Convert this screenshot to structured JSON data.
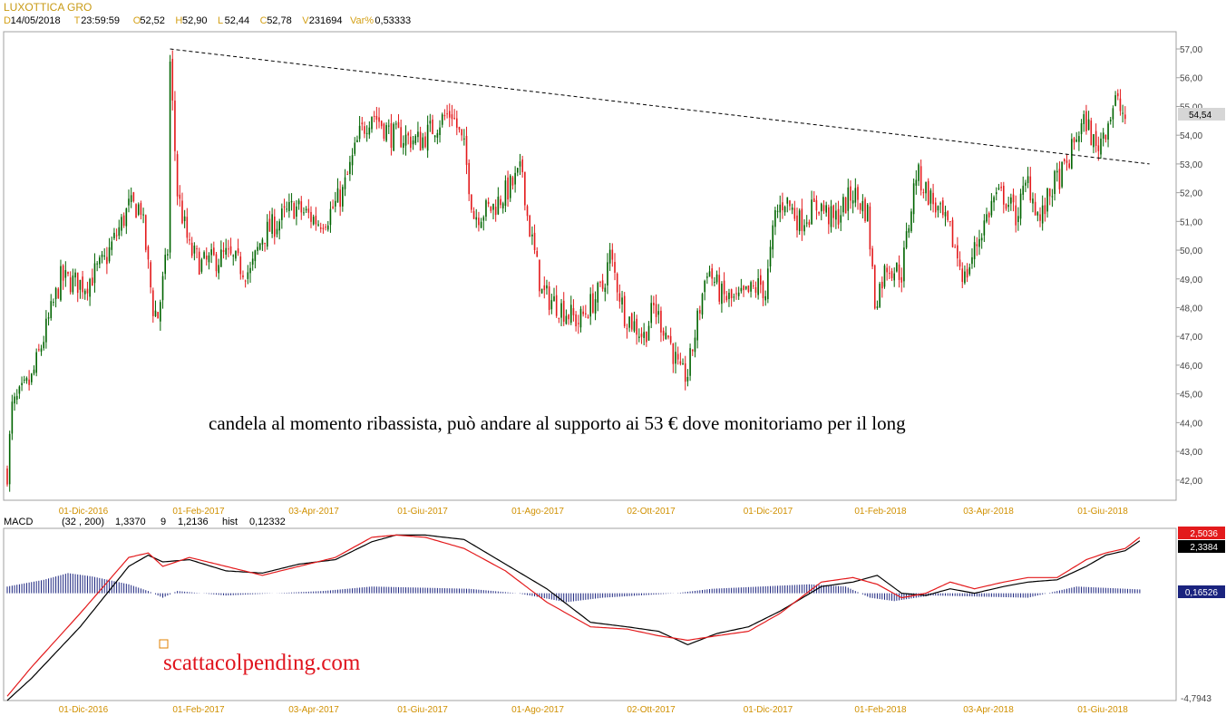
{
  "header": {
    "title": "LUXOTTICA GRO",
    "fields": [
      {
        "key": "D",
        "value": "14/05/2018"
      },
      {
        "key": "T",
        "value": "23:59:59"
      },
      {
        "key": "O",
        "value": "52,52"
      },
      {
        "key": "H",
        "value": "52,90"
      },
      {
        "key": "L",
        "value": "52,44"
      },
      {
        "key": "C",
        "value": "52,78"
      },
      {
        "key": "V",
        "value": "231694"
      },
      {
        "key": "Var%",
        "value": "0,53333"
      }
    ]
  },
  "colors": {
    "up": "#006400",
    "down": "#e31a1c",
    "macd_line": "#000000",
    "signal_line": "#e31a1c",
    "histogram": "#1a237e",
    "trendline": "#000000",
    "tick_x": "#d09000",
    "grid_border": "#a0a0a0"
  },
  "chart_data": [
    {
      "type": "candlestick",
      "ylim": [
        41.3,
        57.6
      ],
      "y_ticks": [
        42,
        43,
        44,
        45,
        46,
        47,
        48,
        49,
        50,
        51,
        52,
        53,
        54,
        55,
        56,
        57
      ],
      "y_tick_labels": [
        "42,00",
        "43,00",
        "44,00",
        "45,00",
        "46,00",
        "47,00",
        "48,00",
        "49,00",
        "50,00",
        "51,00",
        "52,00",
        "53,00",
        "54,00",
        "55,00",
        "56,00",
        "57,00"
      ],
      "x_tick_labels": [
        "01-Dic-2016",
        "01-Feb-2017",
        "03-Apr-2017",
        "01-Giu-2017",
        "01-Ago-2017",
        "02-Ott-2017",
        "01-Dic-2017",
        "01-Feb-2018",
        "03-Apr-2018",
        "01-Giu-2018"
      ],
      "last_value_label": "54,54",
      "last_value": 54.54,
      "price_path": [
        [
          0,
          42.3
        ],
        [
          2,
          44.5
        ],
        [
          10,
          45.5
        ],
        [
          22,
          49.0
        ],
        [
          32,
          48.8
        ],
        [
          40,
          49.6
        ],
        [
          50,
          51.5
        ],
        [
          55,
          51.5
        ],
        [
          60,
          48.0
        ],
        [
          62,
          47.7
        ],
        [
          66,
          50.0
        ],
        [
          67,
          56.5
        ],
        [
          70,
          52.0
        ],
        [
          75,
          50.0
        ],
        [
          80,
          49.5
        ],
        [
          90,
          49.8
        ],
        [
          100,
          49.2
        ],
        [
          105,
          50.5
        ],
        [
          118,
          51.5
        ],
        [
          128,
          51.0
        ],
        [
          132,
          51.2
        ],
        [
          138,
          52.0
        ],
        [
          145,
          54.0
        ],
        [
          150,
          54.8
        ],
        [
          158,
          54.0
        ],
        [
          170,
          53.8
        ],
        [
          178,
          54.5
        ],
        [
          183,
          54.8
        ],
        [
          188,
          53.5
        ],
        [
          192,
          51.2
        ],
        [
          200,
          51.5
        ],
        [
          208,
          52.3
        ],
        [
          212,
          52.8
        ],
        [
          214,
          51.2
        ],
        [
          220,
          48.5
        ],
        [
          228,
          48.0
        ],
        [
          235,
          47.5
        ],
        [
          245,
          48.7
        ],
        [
          248,
          49.8
        ],
        [
          254,
          47.8
        ],
        [
          262,
          47.0
        ],
        [
          266,
          48.0
        ],
        [
          272,
          47.0
        ],
        [
          277,
          45.6
        ],
        [
          280,
          45.7
        ],
        [
          288,
          49.4
        ],
        [
          294,
          48.4
        ],
        [
          300,
          48.2
        ],
        [
          310,
          48.8
        ],
        [
          312,
          48.5
        ],
        [
          316,
          51.2
        ],
        [
          320,
          51.8
        ],
        [
          326,
          51.0
        ],
        [
          334,
          51.6
        ],
        [
          340,
          51.0
        ],
        [
          348,
          52.0
        ],
        [
          354,
          51.3
        ],
        [
          357,
          48.2
        ],
        [
          362,
          49.5
        ],
        [
          368,
          49.2
        ],
        [
          374,
          52.7
        ],
        [
          380,
          51.8
        ],
        [
          388,
          50.6
        ],
        [
          394,
          49.0
        ],
        [
          400,
          50.5
        ],
        [
          406,
          51.8
        ],
        [
          410,
          51.9
        ],
        [
          415,
          51.2
        ],
        [
          420,
          52.4
        ],
        [
          425,
          51.0
        ],
        [
          430,
          52.2
        ],
        [
          436,
          52.9
        ],
        [
          440,
          54.0
        ],
        [
          444,
          54.5
        ],
        [
          448,
          53.5
        ],
        [
          452,
          54.3
        ],
        [
          456,
          55.2
        ],
        [
          460,
          54.6
        ]
      ],
      "trendline": {
        "start": [
          67,
          57.0
        ],
        "end": [
          470,
          53.0
        ],
        "style": "dashed"
      },
      "annotation": "candela al momento ribassista, può andare al supporto ai 53 € dove monitoriamo per il long"
    },
    {
      "type": "macd",
      "label": "MACD",
      "params": "(32 , 200)",
      "macd_value": "1,3370",
      "signal_period": "9",
      "signal_value": "1,2136",
      "hist_label": "hist",
      "hist_value": "0,12332",
      "ylim": [
        -4.7943,
        2.9
      ],
      "y_ticks_shown": [
        "-4,7943"
      ],
      "badges": [
        {
          "value": 2.5036,
          "label": "2,5036",
          "color": "#e31a1c"
        },
        {
          "value": 2.3384,
          "label": "2,3384",
          "color": "#000000"
        },
        {
          "value": 0.16526,
          "label": "0,16526",
          "color": "#1a237e"
        }
      ],
      "macd_path": [
        [
          0,
          -4.79
        ],
        [
          10,
          -3.8
        ],
        [
          30,
          -1.5
        ],
        [
          50,
          1.2
        ],
        [
          58,
          1.7
        ],
        [
          64,
          1.4
        ],
        [
          75,
          1.5
        ],
        [
          90,
          1.0
        ],
        [
          105,
          0.9
        ],
        [
          120,
          1.3
        ],
        [
          135,
          1.5
        ],
        [
          150,
          2.3
        ],
        [
          160,
          2.6
        ],
        [
          172,
          2.6
        ],
        [
          188,
          2.4
        ],
        [
          205,
          1.3
        ],
        [
          222,
          0.2
        ],
        [
          240,
          -1.3
        ],
        [
          255,
          -1.5
        ],
        [
          268,
          -1.7
        ],
        [
          280,
          -2.3
        ],
        [
          292,
          -1.8
        ],
        [
          305,
          -1.5
        ],
        [
          318,
          -0.8
        ],
        [
          335,
          0.3
        ],
        [
          348,
          0.5
        ],
        [
          358,
          0.8
        ],
        [
          368,
          0.0
        ],
        [
          378,
          -0.1
        ],
        [
          388,
          0.2
        ],
        [
          398,
          0.0
        ],
        [
          410,
          0.3
        ],
        [
          420,
          0.5
        ],
        [
          432,
          0.6
        ],
        [
          444,
          1.2
        ],
        [
          452,
          1.7
        ],
        [
          460,
          1.9
        ],
        [
          466,
          2.34
        ]
      ],
      "signal_path": [
        [
          0,
          -4.6
        ],
        [
          10,
          -3.3
        ],
        [
          30,
          -0.9
        ],
        [
          50,
          1.6
        ],
        [
          58,
          1.8
        ],
        [
          64,
          1.2
        ],
        [
          75,
          1.6
        ],
        [
          90,
          1.2
        ],
        [
          105,
          0.8
        ],
        [
          120,
          1.2
        ],
        [
          135,
          1.6
        ],
        [
          150,
          2.5
        ],
        [
          160,
          2.6
        ],
        [
          172,
          2.5
        ],
        [
          188,
          2.0
        ],
        [
          205,
          1.0
        ],
        [
          222,
          -0.4
        ],
        [
          240,
          -1.5
        ],
        [
          255,
          -1.6
        ],
        [
          268,
          -1.9
        ],
        [
          280,
          -2.1
        ],
        [
          292,
          -1.9
        ],
        [
          305,
          -1.7
        ],
        [
          318,
          -0.9
        ],
        [
          335,
          0.5
        ],
        [
          348,
          0.7
        ],
        [
          358,
          0.4
        ],
        [
          368,
          -0.2
        ],
        [
          378,
          0.0
        ],
        [
          388,
          0.5
        ],
        [
          398,
          0.2
        ],
        [
          410,
          0.5
        ],
        [
          420,
          0.7
        ],
        [
          432,
          0.7
        ],
        [
          444,
          1.5
        ],
        [
          452,
          1.8
        ],
        [
          460,
          2.0
        ],
        [
          466,
          2.5
        ]
      ],
      "hist_path": [
        [
          0,
          0.3
        ],
        [
          15,
          0.6
        ],
        [
          25,
          0.9
        ],
        [
          35,
          0.75
        ],
        [
          50,
          0.4
        ],
        [
          58,
          0.1
        ],
        [
          64,
          -0.2
        ],
        [
          70,
          0.1
        ],
        [
          90,
          -0.1
        ],
        [
          130,
          0.1
        ],
        [
          150,
          0.3
        ],
        [
          170,
          0.25
        ],
        [
          190,
          0.2
        ],
        [
          210,
          0.0
        ],
        [
          230,
          -0.4
        ],
        [
          245,
          -0.2
        ],
        [
          260,
          -0.1
        ],
        [
          275,
          0.0
        ],
        [
          290,
          0.2
        ],
        [
          310,
          0.3
        ],
        [
          330,
          0.4
        ],
        [
          345,
          0.3
        ],
        [
          355,
          -0.2
        ],
        [
          365,
          -0.35
        ],
        [
          380,
          -0.1
        ],
        [
          400,
          -0.15
        ],
        [
          420,
          -0.2
        ],
        [
          440,
          0.3
        ],
        [
          460,
          0.2
        ],
        [
          466,
          0.17
        ]
      ]
    }
  ],
  "watermark": "scattacolpending.com"
}
